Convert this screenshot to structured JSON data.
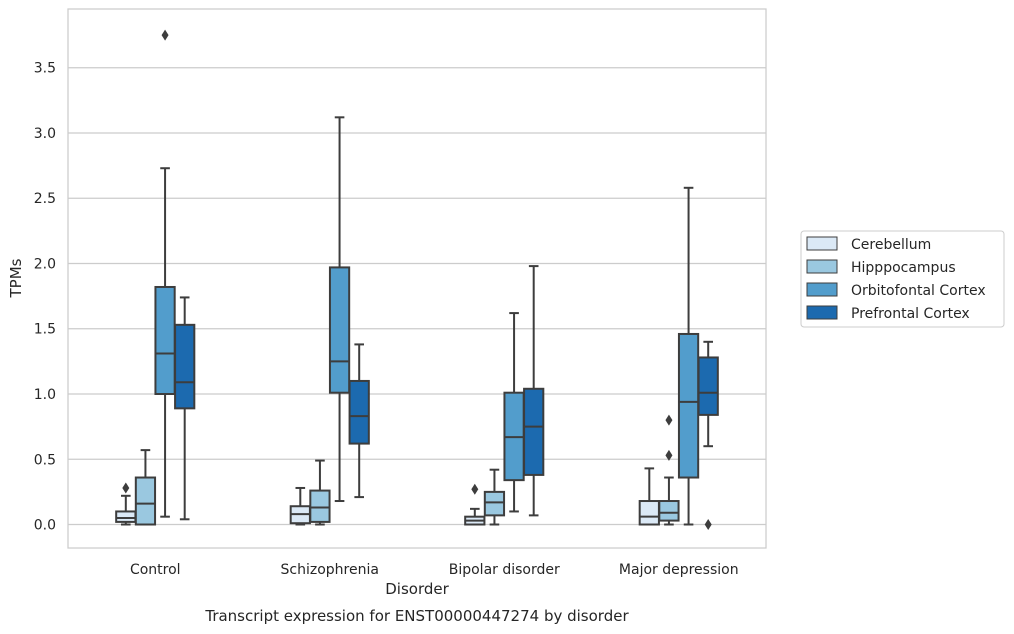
{
  "chart_data": {
    "type": "box",
    "caption": "Transcript expression for ENST00000447274 by disorder",
    "xlabel": "Disorder",
    "ylabel": "TPMs",
    "ylim": [
      -0.18,
      3.95
    ],
    "yticks": [
      "0.0",
      "0.5",
      "1.0",
      "1.5",
      "2.0",
      "2.5",
      "3.0",
      "3.5"
    ],
    "grid": "horizontal",
    "legend_placement": "right",
    "categories": [
      "Control",
      "Schizophrenia",
      "Bipolar disorder",
      "Major depression"
    ],
    "series": [
      {
        "name": "Cerebellum",
        "color": "#dbe9f6",
        "boxes": [
          {
            "whisker_low": 0.0,
            "q1": 0.02,
            "median": 0.05,
            "q3": 0.1,
            "whisker_high": 0.22,
            "outliers": [
              0.28
            ]
          },
          {
            "whisker_low": 0.0,
            "q1": 0.01,
            "median": 0.08,
            "q3": 0.14,
            "whisker_high": 0.28,
            "outliers": []
          },
          {
            "whisker_low": 0.0,
            "q1": 0.0,
            "median": 0.03,
            "q3": 0.06,
            "whisker_high": 0.12,
            "outliers": [
              0.27
            ]
          },
          {
            "whisker_low": 0.0,
            "q1": 0.0,
            "median": 0.06,
            "q3": 0.18,
            "whisker_high": 0.43,
            "outliers": []
          }
        ]
      },
      {
        "name": "Hipppocampus",
        "color": "#9ac8e0",
        "boxes": [
          {
            "whisker_low": 0.0,
            "q1": 0.0,
            "median": 0.16,
            "q3": 0.36,
            "whisker_high": 0.57,
            "outliers": []
          },
          {
            "whisker_low": 0.0,
            "q1": 0.02,
            "median": 0.13,
            "q3": 0.26,
            "whisker_high": 0.49,
            "outliers": []
          },
          {
            "whisker_low": 0.0,
            "q1": 0.07,
            "median": 0.17,
            "q3": 0.25,
            "whisker_high": 0.42,
            "outliers": []
          },
          {
            "whisker_low": 0.0,
            "q1": 0.03,
            "median": 0.09,
            "q3": 0.18,
            "whisker_high": 0.36,
            "outliers": [
              0.53,
              0.8
            ]
          }
        ]
      },
      {
        "name": "Orbitofontal Cortex",
        "color": "#529dcc",
        "boxes": [
          {
            "whisker_low": 0.06,
            "q1": 1.0,
            "median": 1.31,
            "q3": 1.82,
            "whisker_high": 2.73,
            "outliers": [
              3.75
            ]
          },
          {
            "whisker_low": 0.18,
            "q1": 1.01,
            "median": 1.25,
            "q3": 1.97,
            "whisker_high": 3.12,
            "outliers": []
          },
          {
            "whisker_low": 0.1,
            "q1": 0.34,
            "median": 0.67,
            "q3": 1.01,
            "whisker_high": 1.62,
            "outliers": []
          },
          {
            "whisker_low": 0.0,
            "q1": 0.36,
            "median": 0.94,
            "q3": 1.46,
            "whisker_high": 2.58,
            "outliers": []
          }
        ]
      },
      {
        "name": "Prefrontal Cortex",
        "color": "#1c6aaf",
        "boxes": [
          {
            "whisker_low": 0.04,
            "q1": 0.89,
            "median": 1.09,
            "q3": 1.53,
            "whisker_high": 1.74,
            "outliers": []
          },
          {
            "whisker_low": 0.21,
            "q1": 0.62,
            "median": 0.83,
            "q3": 1.1,
            "whisker_high": 1.38,
            "outliers": []
          },
          {
            "whisker_low": 0.07,
            "q1": 0.38,
            "median": 0.75,
            "q3": 1.04,
            "whisker_high": 1.98,
            "outliers": []
          },
          {
            "whisker_low": 0.6,
            "q1": 0.84,
            "median": 1.01,
            "q3": 1.28,
            "whisker_high": 1.4,
            "outliers": [
              0.0
            ]
          }
        ]
      }
    ]
  }
}
